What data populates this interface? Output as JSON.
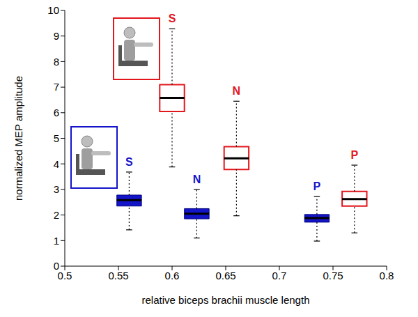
{
  "chart_data": {
    "type": "box",
    "x_label": "relative biceps brachii muscle length",
    "y_label": "normalized MEP amplitude",
    "xlim": [
      0.5,
      0.8
    ],
    "xticks": [
      0.5,
      0.55,
      0.6,
      0.65,
      0.7,
      0.75,
      0.8
    ],
    "ylim": [
      0,
      10
    ],
    "yticks": [
      0,
      1,
      2,
      3,
      4,
      5,
      6,
      7,
      8,
      9,
      10
    ],
    "grid": false,
    "series": [
      {
        "color": "#1414c8",
        "marker": "filled",
        "boxes": [
          {
            "label": "S",
            "x": 0.56,
            "whislo": 1.42,
            "q1": 2.35,
            "med": 2.58,
            "q3": 2.78,
            "whishi": 3.68
          },
          {
            "label": "N",
            "x": 0.623,
            "whislo": 1.1,
            "q1": 1.85,
            "med": 2.05,
            "q3": 2.25,
            "whishi": 3.0
          },
          {
            "label": "P",
            "x": 0.735,
            "whislo": 0.98,
            "q1": 1.72,
            "med": 1.88,
            "q3": 2.02,
            "whishi": 2.72
          }
        ]
      },
      {
        "color": "#e3161c",
        "marker": "open",
        "boxes": [
          {
            "label": "S",
            "x": 0.6,
            "whislo": 3.88,
            "q1": 6.05,
            "med": 6.58,
            "q3": 7.1,
            "whishi": 9.28
          },
          {
            "label": "N",
            "x": 0.66,
            "whislo": 1.97,
            "q1": 3.78,
            "med": 4.22,
            "q3": 4.67,
            "whishi": 6.45
          },
          {
            "label": "P",
            "x": 0.77,
            "whislo": 1.3,
            "q1": 2.35,
            "med": 2.62,
            "q3": 2.92,
            "whishi": 3.95
          }
        ]
      }
    ]
  }
}
